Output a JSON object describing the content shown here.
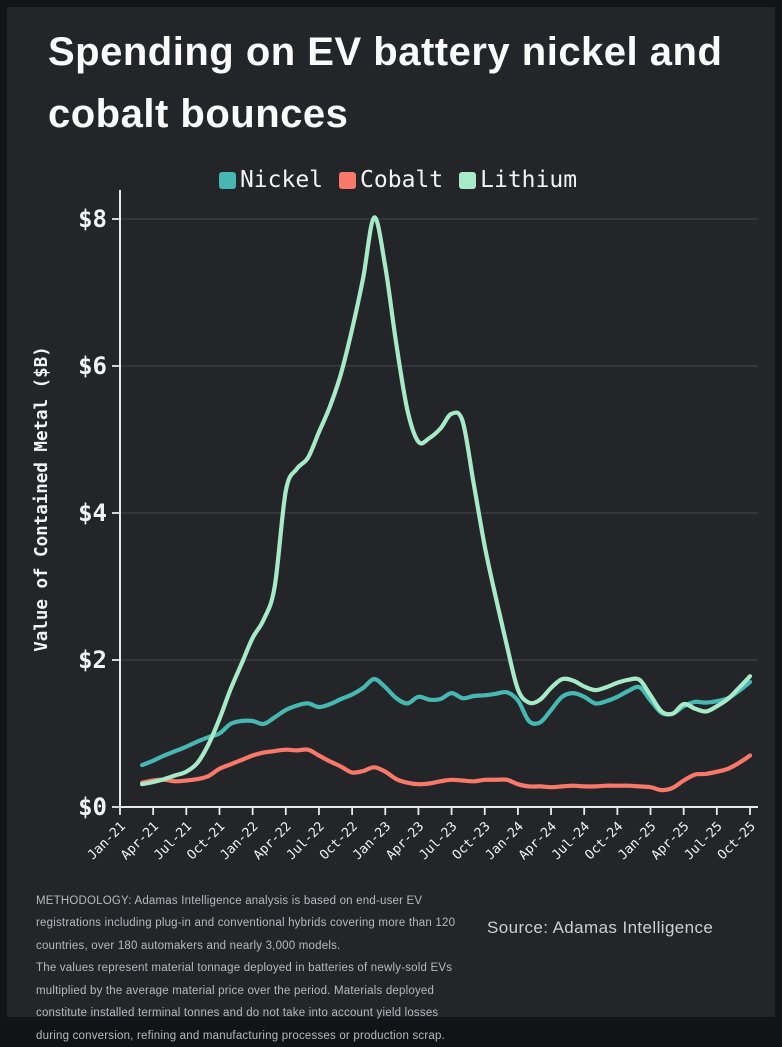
{
  "title": "Spending on EV battery nickel and cobalt bounces",
  "source_label": "Source: Adamas Intelligence",
  "methodology": {
    "para1": "METHODOLOGY: Adamas Intelligence analysis is based on end-user EV registrations including plug-in and conventional hybrids covering more than 120 countries, over 180 automakers and nearly 3,000 models.",
    "para2": "The values represent material tonnage deployed in batteries of newly-sold EVs multiplied by the average material price over the period.  Materials deployed constitute installed terminal tonnes and do not take into account yield losses during conversion, refining and manufacturing processes or production scrap."
  },
  "colors": {
    "background": "#232529",
    "frame": "#121317",
    "axis": "#e8e9ea",
    "gridline": "#3e4147",
    "text": "#f2f3f4",
    "nickel": "#46b8b1",
    "cobalt": "#f8796a",
    "lithium": "#a7eac7"
  },
  "chart_data": {
    "type": "line",
    "title": "Spending on EV battery nickel and cobalt bounces",
    "xlabel": "",
    "ylabel": "Value of Contained Metal ($B)",
    "ylim": [
      0,
      8.35
    ],
    "ytick_values": [
      0,
      2,
      4,
      6,
      8
    ],
    "ytick_labels": [
      "$0",
      "$2",
      "$4",
      "$6",
      "$8"
    ],
    "xtick_labels": [
      "Jan-21",
      "Apr-21",
      "Jul-21",
      "Oct-21",
      "Jan-22",
      "Apr-22",
      "Jul-22",
      "Oct-22",
      "Jan-23",
      "Apr-23",
      "Jul-23",
      "Oct-23",
      "Jan-24",
      "Apr-24",
      "Jul-24",
      "Oct-24",
      "Jan-25",
      "Apr-25",
      "Jul-25",
      "Oct-25"
    ],
    "x_unit": "month",
    "x_axis_start": "Jan-21",
    "data_start": "Mar-21",
    "data_end": "Oct-25",
    "grid": "horizontal-only",
    "legend_position": "top",
    "series": [
      {
        "name": "Nickel",
        "color": "#46b8b1",
        "values": [
          0.57,
          0.63,
          0.7,
          0.76,
          0.82,
          0.89,
          0.95,
          1.0,
          1.13,
          1.17,
          1.17,
          1.13,
          1.22,
          1.32,
          1.38,
          1.41,
          1.36,
          1.4,
          1.47,
          1.53,
          1.62,
          1.74,
          1.63,
          1.48,
          1.41,
          1.5,
          1.46,
          1.47,
          1.55,
          1.48,
          1.51,
          1.52,
          1.54,
          1.56,
          1.45,
          1.17,
          1.15,
          1.32,
          1.5,
          1.55,
          1.5,
          1.41,
          1.44,
          1.5,
          1.58,
          1.63,
          1.45,
          1.28,
          1.27,
          1.37,
          1.43,
          1.42,
          1.44,
          1.48,
          1.58,
          1.7
        ]
      },
      {
        "name": "Cobalt",
        "color": "#f8796a",
        "values": [
          0.33,
          0.36,
          0.37,
          0.35,
          0.36,
          0.38,
          0.42,
          0.52,
          0.58,
          0.64,
          0.7,
          0.74,
          0.76,
          0.78,
          0.77,
          0.78,
          0.7,
          0.62,
          0.55,
          0.47,
          0.49,
          0.54,
          0.48,
          0.38,
          0.33,
          0.31,
          0.32,
          0.35,
          0.37,
          0.36,
          0.35,
          0.37,
          0.37,
          0.37,
          0.31,
          0.28,
          0.28,
          0.27,
          0.28,
          0.29,
          0.28,
          0.28,
          0.29,
          0.29,
          0.29,
          0.28,
          0.27,
          0.23,
          0.26,
          0.36,
          0.44,
          0.45,
          0.48,
          0.52,
          0.6,
          0.7
        ]
      },
      {
        "name": "Lithium",
        "color": "#a7eac7",
        "values": [
          0.31,
          0.34,
          0.38,
          0.43,
          0.48,
          0.6,
          0.85,
          1.2,
          1.6,
          1.95,
          2.3,
          2.55,
          3.0,
          4.3,
          4.6,
          4.75,
          5.1,
          5.45,
          5.9,
          6.5,
          7.2,
          8.02,
          7.35,
          6.3,
          5.4,
          4.97,
          5.02,
          5.15,
          5.35,
          5.25,
          4.4,
          3.55,
          2.85,
          2.2,
          1.6,
          1.42,
          1.46,
          1.62,
          1.74,
          1.72,
          1.64,
          1.59,
          1.63,
          1.69,
          1.73,
          1.73,
          1.52,
          1.3,
          1.27,
          1.4,
          1.34,
          1.3,
          1.37,
          1.47,
          1.62,
          1.78
        ]
      }
    ]
  }
}
